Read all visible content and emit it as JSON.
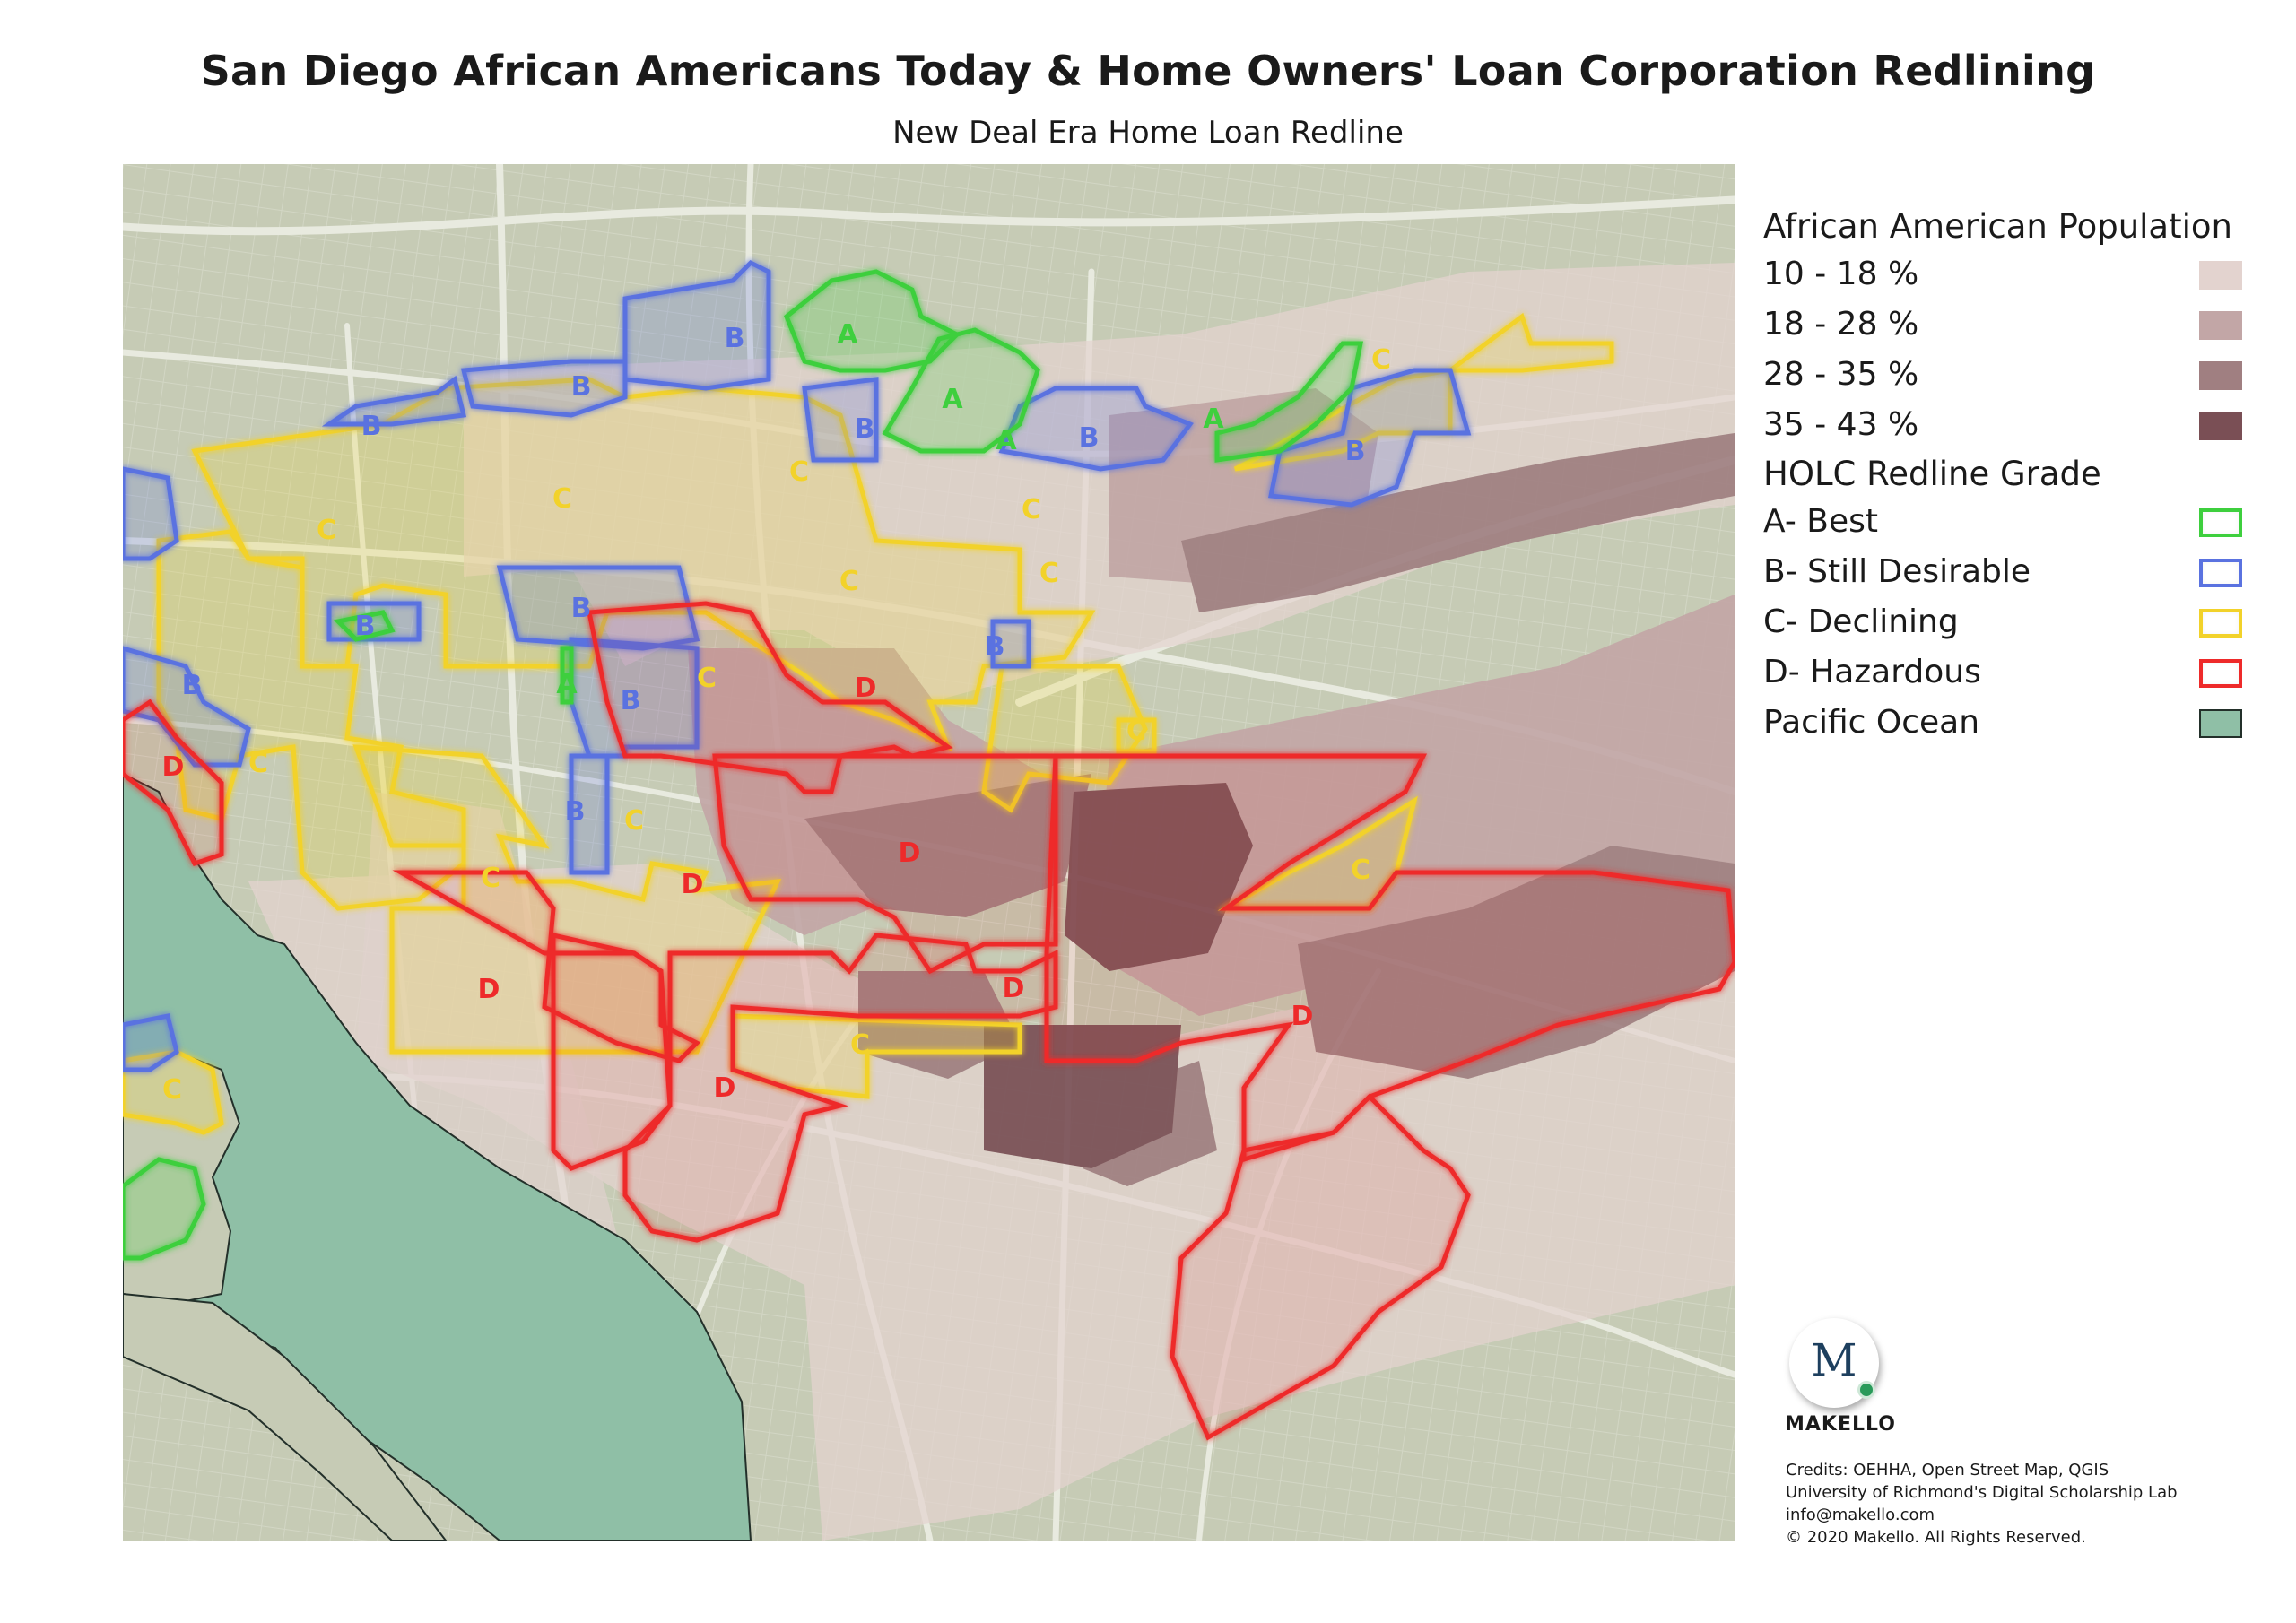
{
  "header": {
    "title": "San Diego African Americans Today & Home Owners' Loan Corporation Redlining",
    "subtitle": "New Deal Era Home Loan Redline"
  },
  "legend": {
    "population_heading": "African American Population",
    "population_classes": [
      {
        "label": "10 - 18 %",
        "color": "#e3d3cf"
      },
      {
        "label": "18 - 28 %",
        "color": "#c2a6a6"
      },
      {
        "label": "28 - 35 %",
        "color": "#a07f81"
      },
      {
        "label": "35 - 43 %",
        "color": "#7a4f55"
      }
    ],
    "grade_heading": "HOLC Redline Grade",
    "grades": [
      {
        "label": "A- Best",
        "color": "#3ecf3e"
      },
      {
        "label": "B- Still Desirable",
        "color": "#5a72e0"
      },
      {
        "label": "C- Declining",
        "color": "#f2d22a"
      },
      {
        "label": "D- Hazardous",
        "color": "#ee2a2a"
      }
    ],
    "ocean": {
      "label": "Pacific Ocean",
      "color": "#8fbfa6"
    }
  },
  "map_labels": {
    "grade_A": "A",
    "grade_B": "B",
    "grade_C": "C",
    "grade_D": "D"
  },
  "colors": {
    "land": "#c6cbb5",
    "road": "#eceee4",
    "ocean": "#8fbfa6"
  },
  "logo": {
    "mark": "M",
    "name": "MAKELLO"
  },
  "credits": [
    "Credits: OEHHA, Open Street Map, QGIS",
    "University of Richmond's Digital Scholarship Lab",
    "info@makello.com",
    "© 2020 Makello. All Rights Reserved."
  ]
}
